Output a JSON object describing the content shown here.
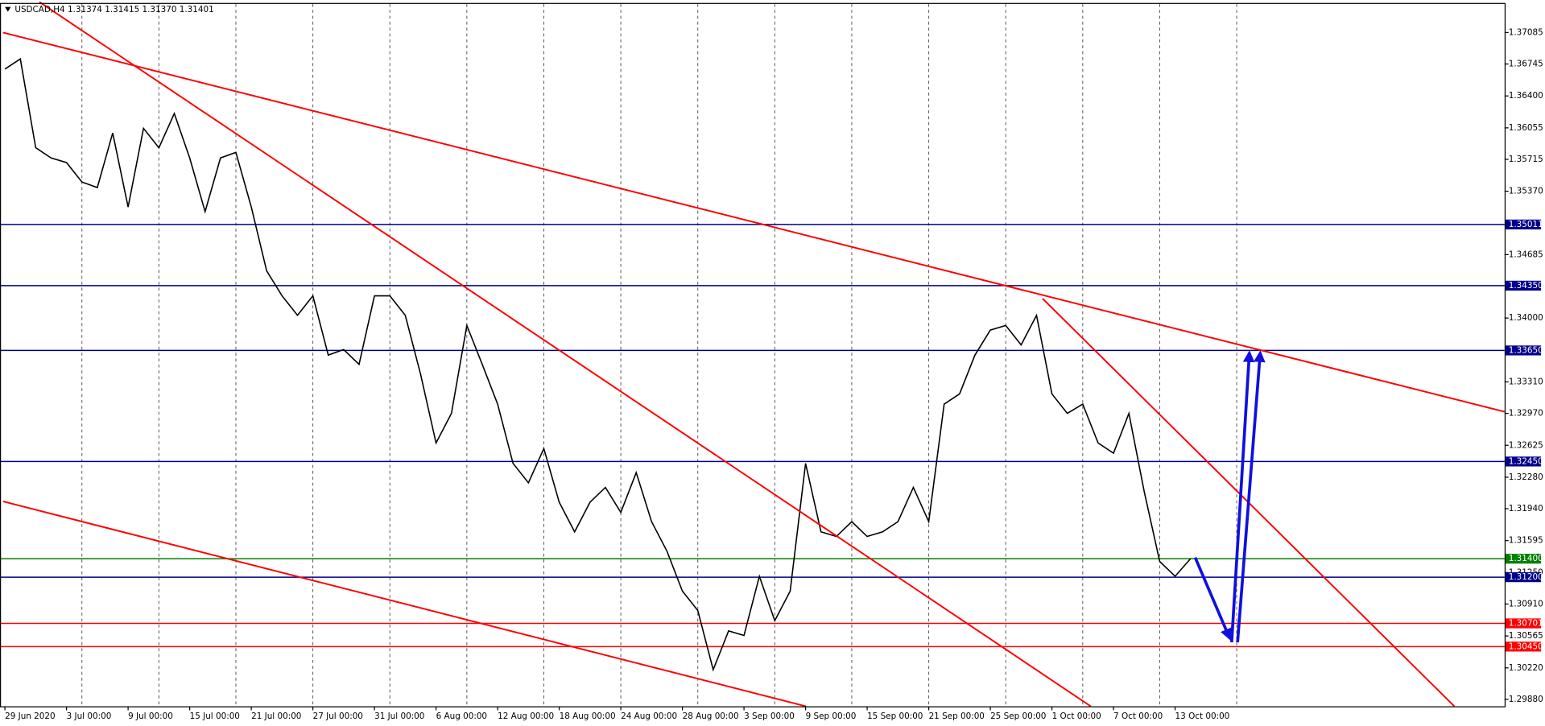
{
  "chart_data": {
    "type": "line",
    "title": "USDCAD,H4  1.31374 1.31415 1.31370 1.31401",
    "x": [
      0,
      1,
      2,
      3,
      4,
      5,
      6,
      7,
      8,
      9,
      10,
      11,
      12,
      13,
      14,
      15,
      16,
      17,
      18,
      19,
      20,
      21,
      22,
      23,
      24,
      25,
      26,
      27,
      28,
      29,
      30,
      31,
      32,
      33,
      34,
      35,
      36,
      37,
      38,
      39,
      40,
      41,
      42,
      43,
      44,
      45,
      46,
      47,
      48,
      49,
      50,
      51,
      52,
      53,
      54,
      55,
      56,
      57,
      58,
      59,
      60,
      61,
      62,
      63,
      64,
      65,
      66,
      67,
      68,
      69,
      70,
      71,
      72,
      73,
      74,
      75,
      76,
      77
    ],
    "series": [
      {
        "color": "#000000",
        "values": [
          1.3669,
          1.368,
          1.3584,
          1.3573,
          1.3568,
          1.3547,
          1.3541,
          1.36,
          1.352,
          1.3605,
          1.3584,
          1.3621,
          1.3573,
          1.3515,
          1.3573,
          1.3579,
          1.352,
          1.3451,
          1.3424,
          1.3403,
          1.3424,
          1.336,
          1.3366,
          1.335,
          1.3424,
          1.3424,
          1.3403,
          1.3339,
          1.3265,
          1.3297,
          1.3392,
          1.335,
          1.3307,
          1.3243,
          1.3222,
          1.3259,
          1.3201,
          1.3169,
          1.3201,
          1.3217,
          1.319,
          1.3233,
          1.318,
          1.3148,
          1.3105,
          1.3084,
          1.302,
          1.3062,
          1.3057,
          1.3121,
          1.3073,
          1.3105,
          1.3243,
          1.3169,
          1.3164,
          1.318,
          1.3164,
          1.3169,
          1.318,
          1.3217,
          1.318,
          1.3307,
          1.3318,
          1.336,
          1.3387,
          1.3392,
          1.3371,
          1.3403,
          1.3318,
          1.3297,
          1.3307,
          1.3265,
          1.3254,
          1.3297,
          1.3212,
          1.3137,
          1.3121,
          1.314
        ]
      }
    ],
    "xlim": [
      -0.32,
      97.4
    ],
    "xticks": [
      {
        "value": 0,
        "label": "29 Jun 2020"
      },
      {
        "value": 4,
        "label": "3 Jul 00:00"
      },
      {
        "value": 8,
        "label": "9 Jul 00:00"
      },
      {
        "value": 12,
        "label": "15 Jul 00:00"
      },
      {
        "value": 16,
        "label": "21 Jul 00:00"
      },
      {
        "value": 20,
        "label": "27 Jul 00:00"
      },
      {
        "value": 24,
        "label": "31 Jul 00:00"
      },
      {
        "value": 28,
        "label": "6 Aug 00:00"
      },
      {
        "value": 32,
        "label": "12 Aug 00:00"
      },
      {
        "value": 36,
        "label": "18 Aug 00:00"
      },
      {
        "value": 40,
        "label": "24 Aug 00:00"
      },
      {
        "value": 44,
        "label": "28 Aug 00:00"
      },
      {
        "value": 48,
        "label": "3 Sep 00:00"
      },
      {
        "value": 52,
        "label": "9 Sep 00:00"
      },
      {
        "value": 56,
        "label": "15 Sep 00:00"
      },
      {
        "value": 60,
        "label": "21 Sep 00:00"
      },
      {
        "value": 64,
        "label": "25 Sep 00:00"
      },
      {
        "value": 68,
        "label": "1 Oct 00:00"
      },
      {
        "value": 72,
        "label": "7 Oct 00:00"
      },
      {
        "value": 76,
        "label": "13 Oct 00:00"
      }
    ],
    "xgrid": [
      5,
      10,
      15,
      20,
      25,
      30,
      35,
      40,
      45,
      50,
      55,
      60,
      65,
      70,
      75,
      80
    ],
    "ylim": [
      1.29805,
      1.37394
    ],
    "yticks": [
      {
        "value": 1.37085,
        "label": "1.37085"
      },
      {
        "value": 1.36745,
        "label": "1.36745"
      },
      {
        "value": 1.364,
        "label": "1.36400"
      },
      {
        "value": 1.36055,
        "label": "1.36055"
      },
      {
        "value": 1.35715,
        "label": "1.35715"
      },
      {
        "value": 1.3537,
        "label": "1.35370"
      },
      {
        "value": 1.34685,
        "label": "1.34685"
      },
      {
        "value": 1.34,
        "label": "1.34000"
      },
      {
        "value": 1.3331,
        "label": "1.33310"
      },
      {
        "value": 1.3297,
        "label": "1.32970"
      },
      {
        "value": 1.32625,
        "label": "1.32625"
      },
      {
        "value": 1.3228,
        "label": "1.32280"
      },
      {
        "value": 1.3194,
        "label": "1.31940"
      },
      {
        "value": 1.31595,
        "label": "1.31595"
      },
      {
        "value": 1.3125,
        "label": "1.31250"
      },
      {
        "value": 1.3091,
        "label": "1.30910"
      },
      {
        "value": 1.30565,
        "label": "1.30565"
      },
      {
        "value": 1.3022,
        "label": "1.30220"
      },
      {
        "value": 1.2988,
        "label": "1.29880"
      }
    ],
    "levels": [
      {
        "value": 1.35011,
        "label": "1.35011",
        "color": "#00008b"
      },
      {
        "value": 1.3435,
        "label": "1.34350",
        "color": "#00008b"
      },
      {
        "value": 1.3365,
        "label": "1.33650",
        "color": "#00008b"
      },
      {
        "value": 1.3245,
        "label": "1.32450",
        "color": "#00008b"
      },
      {
        "value": 1.314,
        "label": "1.31400",
        "color": "#008000"
      },
      {
        "value": 1.312,
        "label": "1.31200",
        "color": "#00008b"
      },
      {
        "value": 1.30701,
        "label": "1.30701",
        "color": "#ff0000"
      },
      {
        "value": 1.3045,
        "label": "1.30450",
        "color": "#ff0000"
      }
    ]
  }
}
